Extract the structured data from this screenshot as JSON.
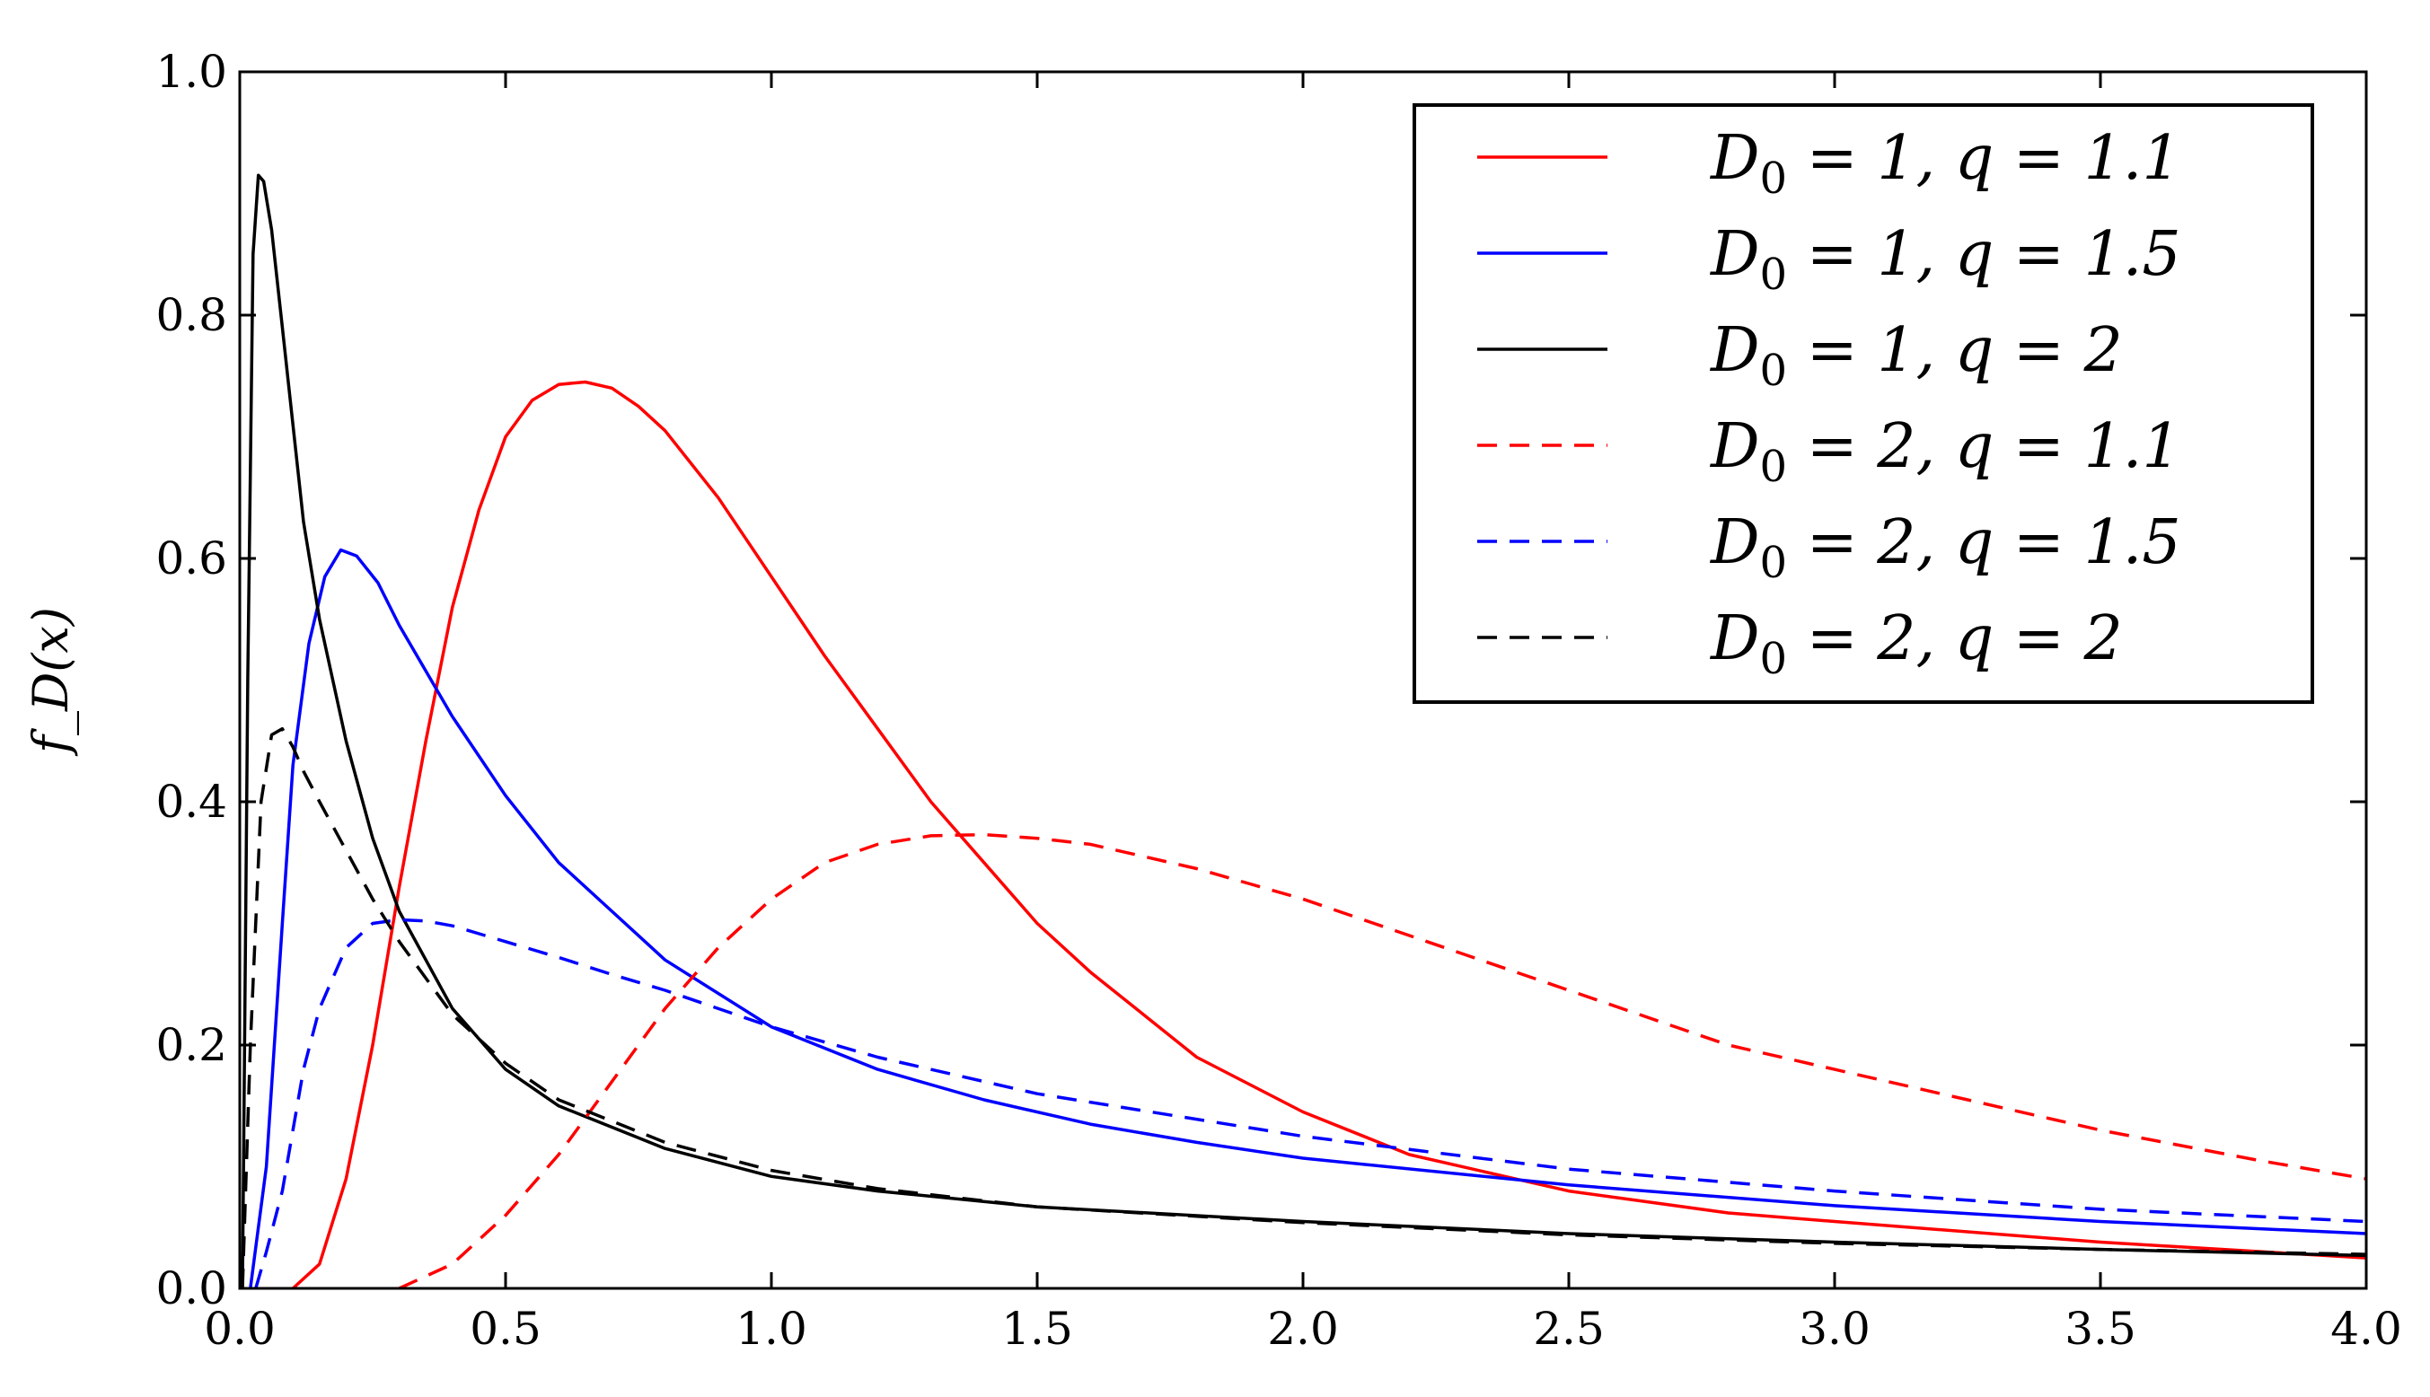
{
  "chart_data": {
    "type": "line",
    "title": "",
    "xlabel": "",
    "ylabel": "f_D(x)",
    "xlim": [
      0.0,
      4.0
    ],
    "ylim": [
      0.0,
      1.0
    ],
    "xticks": [
      "0.0",
      "0.5",
      "1.0",
      "1.5",
      "2.0",
      "2.5",
      "3.0",
      "3.5",
      "4.0"
    ],
    "yticks": [
      "0.0",
      "0.2",
      "0.4",
      "0.6",
      "0.8",
      "1.0"
    ],
    "grid": false,
    "legend_position": "top-right",
    "series": [
      {
        "name": "D0 = 1, q = 1.1",
        "legend": {
          "D": "D",
          "sub": "0",
          "rest": " = 1, q = 1.1"
        },
        "color": "#ff0000",
        "style": "solid",
        "x": [
          0.1,
          0.15,
          0.2,
          0.25,
          0.3,
          0.35,
          0.4,
          0.45,
          0.5,
          0.55,
          0.6,
          0.65,
          0.7,
          0.75,
          0.8,
          0.9,
          1.0,
          1.1,
          1.2,
          1.3,
          1.4,
          1.5,
          1.6,
          1.8,
          2.0,
          2.2,
          2.5,
          2.8,
          3.0,
          3.5,
          4.0
        ],
        "y": [
          0.0,
          0.02,
          0.09,
          0.2,
          0.33,
          0.45,
          0.56,
          0.64,
          0.7,
          0.73,
          0.743,
          0.745,
          0.74,
          0.725,
          0.705,
          0.65,
          0.585,
          0.52,
          0.46,
          0.4,
          0.35,
          0.3,
          0.26,
          0.19,
          0.145,
          0.11,
          0.08,
          0.062,
          0.055,
          0.038,
          0.025
        ]
      },
      {
        "name": "D0 = 1, q = 1.5",
        "legend": {
          "D": "D",
          "sub": "0",
          "rest": " = 1, q = 1.5"
        },
        "color": "#0000ff",
        "style": "solid",
        "x": [
          0.02,
          0.05,
          0.08,
          0.1,
          0.13,
          0.16,
          0.19,
          0.22,
          0.26,
          0.3,
          0.4,
          0.5,
          0.6,
          0.7,
          0.8,
          1.0,
          1.2,
          1.4,
          1.6,
          1.8,
          2.0,
          2.5,
          3.0,
          3.5,
          4.0
        ],
        "y": [
          0.0,
          0.1,
          0.3,
          0.43,
          0.53,
          0.585,
          0.607,
          0.602,
          0.58,
          0.545,
          0.47,
          0.405,
          0.35,
          0.31,
          0.27,
          0.215,
          0.18,
          0.155,
          0.135,
          0.12,
          0.107,
          0.085,
          0.068,
          0.055,
          0.045
        ]
      },
      {
        "name": "D0 = 1, q = 2",
        "legend": {
          "D": "D",
          "sub": "0",
          "rest": " = 1, q = 2"
        },
        "color": "#000000",
        "style": "solid",
        "x": [
          0.005,
          0.015,
          0.025,
          0.035,
          0.045,
          0.06,
          0.08,
          0.1,
          0.12,
          0.15,
          0.2,
          0.25,
          0.3,
          0.4,
          0.5,
          0.6,
          0.8,
          1.0,
          1.2,
          1.5,
          2.0,
          2.5,
          3.0,
          3.5,
          4.0
        ],
        "y": [
          0.0,
          0.5,
          0.85,
          0.915,
          0.91,
          0.87,
          0.79,
          0.71,
          0.63,
          0.55,
          0.45,
          0.37,
          0.31,
          0.23,
          0.18,
          0.15,
          0.115,
          0.092,
          0.08,
          0.067,
          0.055,
          0.045,
          0.038,
          0.032,
          0.027
        ]
      },
      {
        "name": "D0 = 2, q = 1.1",
        "legend": {
          "D": "D",
          "sub": "0",
          "rest": " = 2, q = 1.1"
        },
        "color": "#ff0000",
        "style": "dashed",
        "x": [
          0.3,
          0.4,
          0.5,
          0.6,
          0.7,
          0.8,
          0.9,
          1.0,
          1.1,
          1.2,
          1.3,
          1.4,
          1.5,
          1.6,
          1.8,
          2.0,
          2.2,
          2.5,
          2.8,
          3.0,
          3.2,
          3.5,
          3.8,
          4.0
        ],
        "y": [
          0.0,
          0.02,
          0.06,
          0.11,
          0.17,
          0.23,
          0.28,
          0.32,
          0.35,
          0.365,
          0.372,
          0.373,
          0.37,
          0.365,
          0.345,
          0.32,
          0.29,
          0.245,
          0.2,
          0.18,
          0.16,
          0.13,
          0.105,
          0.09
        ]
      },
      {
        "name": "D0 = 2, q = 1.5",
        "legend": {
          "D": "D",
          "sub": "0",
          "rest": " = 2, q = 1.5"
        },
        "color": "#0000ff",
        "style": "dashed",
        "x": [
          0.03,
          0.05,
          0.08,
          0.1,
          0.12,
          0.15,
          0.2,
          0.25,
          0.3,
          0.35,
          0.4,
          0.5,
          0.6,
          0.7,
          0.8,
          1.0,
          1.2,
          1.5,
          2.0,
          2.5,
          3.0,
          3.5,
          4.0
        ],
        "y": [
          0.0,
          0.03,
          0.08,
          0.13,
          0.18,
          0.23,
          0.28,
          0.3,
          0.303,
          0.302,
          0.298,
          0.285,
          0.272,
          0.258,
          0.245,
          0.215,
          0.19,
          0.16,
          0.125,
          0.098,
          0.08,
          0.065,
          0.055
        ]
      },
      {
        "name": "D0 = 2, q = 2",
        "legend": {
          "D": "D",
          "sub": "0",
          "rest": " = 2, q = 2"
        },
        "color": "#000000",
        "style": "dashed",
        "x": [
          0.005,
          0.02,
          0.04,
          0.06,
          0.08,
          0.1,
          0.12,
          0.15,
          0.2,
          0.25,
          0.3,
          0.4,
          0.5,
          0.6,
          0.8,
          1.0,
          1.2,
          1.5,
          2.0,
          2.5,
          3.0,
          3.5,
          4.0
        ],
        "y": [
          0.0,
          0.2,
          0.4,
          0.455,
          0.46,
          0.445,
          0.425,
          0.4,
          0.36,
          0.32,
          0.285,
          0.225,
          0.185,
          0.155,
          0.12,
          0.097,
          0.082,
          0.067,
          0.054,
          0.044,
          0.037,
          0.032,
          0.028
        ]
      }
    ]
  }
}
